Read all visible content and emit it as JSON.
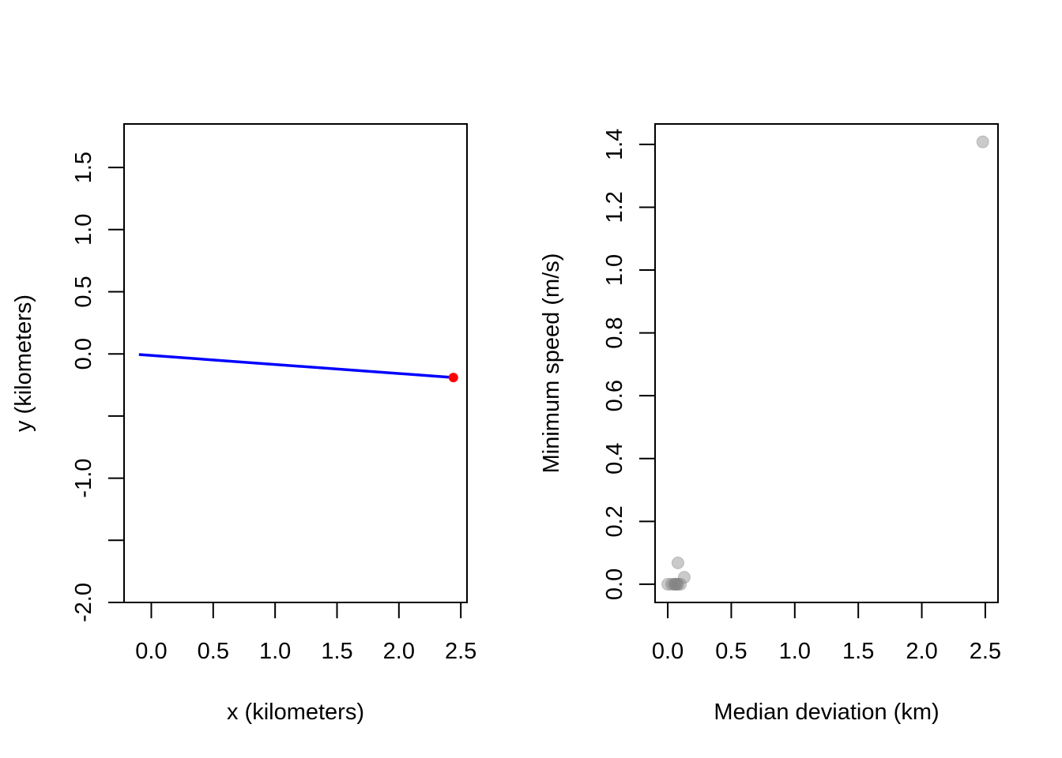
{
  "chart_data": [
    {
      "type": "line",
      "title": "",
      "xlabel": "x (kilometers)",
      "ylabel": "y (kilometers)",
      "xlim": [
        -0.22,
        2.55
      ],
      "ylim": [
        -2.0,
        1.85
      ],
      "xticks": [
        {
          "value": 0.0,
          "label": "0.0"
        },
        {
          "value": 0.5,
          "label": "0.5"
        },
        {
          "value": 1.0,
          "label": "1.0"
        },
        {
          "value": 1.5,
          "label": "1.5"
        },
        {
          "value": 2.0,
          "label": "2.0"
        },
        {
          "value": 2.5,
          "label": "2.5"
        }
      ],
      "yticks": [
        {
          "value": -2.0,
          "label": "-2.0"
        },
        {
          "value": -1.5,
          "label": ""
        },
        {
          "value": -1.0,
          "label": "-1.0"
        },
        {
          "value": -0.5,
          "label": ""
        },
        {
          "value": 0.0,
          "label": "0.0"
        },
        {
          "value": 0.5,
          "label": "0.5"
        },
        {
          "value": 1.0,
          "label": "1.0"
        },
        {
          "value": 1.5,
          "label": "1.5"
        }
      ],
      "series": [
        {
          "color": "#0000ff",
          "points": [
            [
              -0.1,
              -0.005
            ],
            [
              2.44,
              -0.19
            ]
          ]
        }
      ],
      "markers": [
        {
          "x": 2.44,
          "y": -0.19,
          "color": "#ff0000"
        }
      ],
      "grid": false
    },
    {
      "type": "scatter",
      "title": "",
      "xlabel": "Median deviation (km)",
      "ylabel": "Minimum speed (m/s)",
      "xlim": [
        -0.1,
        2.6
      ],
      "ylim": [
        -0.058,
        1.465
      ],
      "xticks": [
        {
          "value": 0.0,
          "label": "0.0"
        },
        {
          "value": 0.5,
          "label": "0.5"
        },
        {
          "value": 1.0,
          "label": "1.0"
        },
        {
          "value": 1.5,
          "label": "1.5"
        },
        {
          "value": 2.0,
          "label": "2.0"
        },
        {
          "value": 2.5,
          "label": "2.5"
        }
      ],
      "yticks": [
        {
          "value": 0.0,
          "label": "0.0"
        },
        {
          "value": 0.2,
          "label": "0.2"
        },
        {
          "value": 0.4,
          "label": "0.4"
        },
        {
          "value": 0.6,
          "label": "0.6"
        },
        {
          "value": 0.8,
          "label": "0.8"
        },
        {
          "value": 1.0,
          "label": "1.0"
        },
        {
          "value": 1.2,
          "label": "1.2"
        },
        {
          "value": 1.4,
          "label": "1.4"
        }
      ],
      "point_color": "#808080",
      "point_opacity": 0.42,
      "points": [
        {
          "x": 0.0,
          "y": 0.0
        },
        {
          "x": 0.03,
          "y": 0.0
        },
        {
          "x": 0.05,
          "y": 0.0
        },
        {
          "x": 0.06,
          "y": 0.0
        },
        {
          "x": 0.07,
          "y": 0.0
        },
        {
          "x": 0.08,
          "y": 0.0
        },
        {
          "x": 0.1,
          "y": 0.0
        },
        {
          "x": 0.08,
          "y": 0.068
        },
        {
          "x": 0.13,
          "y": 0.022
        },
        {
          "x": 2.48,
          "y": 1.408
        }
      ],
      "grid": false
    }
  ]
}
